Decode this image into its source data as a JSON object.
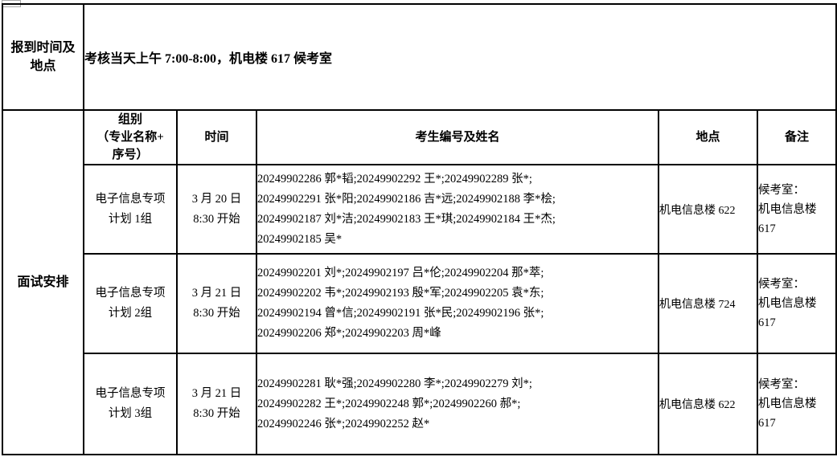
{
  "page": {
    "background": "#ffffff",
    "border_color": "#000000"
  },
  "report_row": {
    "label_lines": [
      "报到时间及",
      "地点"
    ],
    "value": "考核当天上午 7:00-8:00，机电楼 617 候考室"
  },
  "interview_section": {
    "label": "面试安排",
    "headers": {
      "group_lines": [
        "组别",
        "（专业名称+",
        "序号）"
      ],
      "time": "时间",
      "candidates": "考生编号及姓名",
      "location": "地点",
      "note": "备注"
    },
    "rows": [
      {
        "group_lines": [
          "电子信息专项",
          "计划 1组"
        ],
        "time_lines": [
          "3 月 20 日",
          "8:30 开始"
        ],
        "candidate_lines": [
          "20249902286 郭*韬;20249902292 王*;20249902289 张*;",
          "20249902291 张*阳;20249902186 吉*远;20249902188 李*桧;",
          "20249902187 刘*洁;20249902183 王*琪;20249902184 王*杰;",
          "20249902185 吴*"
        ],
        "location": "机电信息楼 622",
        "note_lines": [
          "候考室：",
          "机电信息楼",
          "617"
        ]
      },
      {
        "group_lines": [
          "电子信息专项",
          "计划 2组"
        ],
        "time_lines": [
          "3 月 21 日",
          "8:30 开始"
        ],
        "candidate_lines": [
          "20249902201 刘*;20249902197 吕*伦;20249902204 那*萃;",
          "20249902202 韦*;20249902193 殷*军;20249902205 袁*东;",
          "20249902194 曾*信;20249902191 张*民;20249902196 张*;",
          "20249902206 郑*;20249902203 周*峰"
        ],
        "location": "机电信息楼 724",
        "note_lines": [
          "候考室：",
          "机电信息楼",
          "617"
        ]
      },
      {
        "group_lines": [
          "电子信息专项",
          "计划 3组"
        ],
        "time_lines": [
          "3 月 21 日",
          "8:30 开始"
        ],
        "candidate_lines": [
          "20249902281 耿*强;20249902280 李*;20249902279 刘*;",
          "20249902282 王*;20249902248 郭*;20249902260 郝*;",
          "20249902246 张*;20249902252 赵*"
        ],
        "location": "机电信息楼 622",
        "note_lines": [
          "候考室：",
          "机电信息楼",
          "617"
        ]
      }
    ]
  }
}
